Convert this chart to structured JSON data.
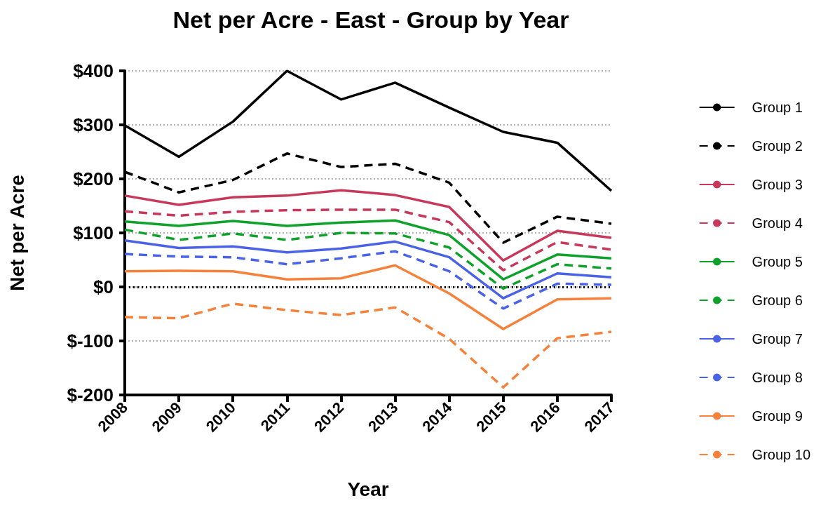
{
  "chart_data": {
    "type": "line",
    "title": "Net per Acre - East - Group by Year",
    "xlabel": "Year",
    "ylabel": "Net per Acre",
    "categories": [
      "2008",
      "2009",
      "2010",
      "2011",
      "2012",
      "2013",
      "2014",
      "2015",
      "2016",
      "2017"
    ],
    "ylim": [
      -200,
      400
    ],
    "yticks": [
      {
        "value": -200,
        "label": "$-200"
      },
      {
        "value": -100,
        "label": "$-100"
      },
      {
        "value": 0,
        "label": "$0"
      },
      {
        "value": 100,
        "label": "$100"
      },
      {
        "value": 200,
        "label": "$200"
      },
      {
        "value": 300,
        "label": "$300"
      },
      {
        "value": 400,
        "label": "$400"
      }
    ],
    "grid": "y",
    "legend": "right",
    "marker": "none",
    "ref_lines": [
      {
        "axis": "y",
        "value": 0,
        "color": "#000000",
        "line_style": "dotted"
      }
    ],
    "series": [
      {
        "name": "Group 1",
        "color": "#000000",
        "line_style": "solid",
        "values": [
          299,
          241,
          306,
          400,
          347,
          378,
          332,
          287,
          267,
          178
        ]
      },
      {
        "name": "Group 2",
        "color": "#000000",
        "line_style": "dashed",
        "values": [
          213,
          175,
          198,
          247,
          222,
          228,
          193,
          82,
          130,
          117
        ]
      },
      {
        "name": "Group 3",
        "color": "#c8385a",
        "line_style": "solid",
        "values": [
          169,
          152,
          166,
          169,
          179,
          170,
          148,
          49,
          104,
          91
        ]
      },
      {
        "name": "Group 4",
        "color": "#c8385a",
        "line_style": "dashed",
        "values": [
          140,
          132,
          139,
          142,
          143,
          143,
          120,
          31,
          83,
          69
        ]
      },
      {
        "name": "Group 5",
        "color": "#0fa22a",
        "line_style": "solid",
        "values": [
          121,
          113,
          122,
          113,
          119,
          123,
          96,
          14,
          60,
          53
        ]
      },
      {
        "name": "Group 6",
        "color": "#0fa22a",
        "line_style": "dashed",
        "values": [
          106,
          87,
          99,
          87,
          100,
          99,
          73,
          -3,
          42,
          34
        ]
      },
      {
        "name": "Group 7",
        "color": "#4a63e6",
        "line_style": "solid",
        "values": [
          86,
          72,
          75,
          64,
          71,
          84,
          55,
          -21,
          25,
          18
        ]
      },
      {
        "name": "Group 8",
        "color": "#4a63e6",
        "line_style": "dashed",
        "values": [
          61,
          56,
          55,
          42,
          53,
          66,
          29,
          -40,
          6,
          4
        ]
      },
      {
        "name": "Group 9",
        "color": "#f5813a",
        "line_style": "solid",
        "values": [
          29,
          30,
          29,
          14,
          16,
          40,
          -12,
          -78,
          -23,
          -21
        ]
      },
      {
        "name": "Group 10",
        "color": "#f5813a",
        "line_style": "dashed",
        "values": [
          -56,
          -58,
          -31,
          -43,
          -52,
          -38,
          -96,
          -186,
          -95,
          -83
        ]
      }
    ]
  }
}
